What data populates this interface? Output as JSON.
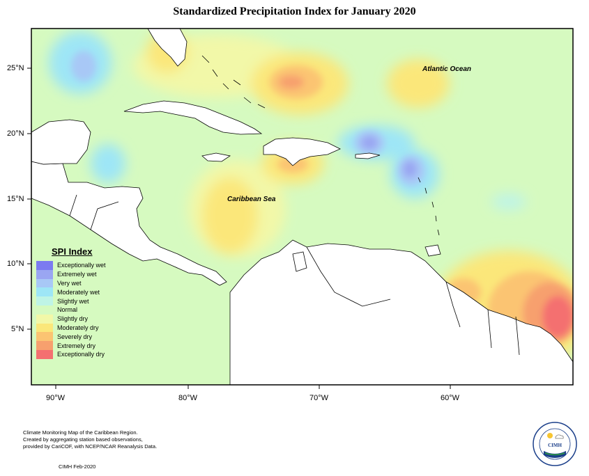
{
  "title": "Standardized Precipitation Index for January 2020",
  "y_axis_labels": [
    "25°N",
    "20°N",
    "15°N",
    "10°N",
    "5°N"
  ],
  "x_axis_labels": [
    "90°W",
    "80°W",
    "70°W",
    "60°W"
  ],
  "ocean_labels": {
    "atlantic": "Atlantic Ocean",
    "caribbean": "Caribbean Sea"
  },
  "legend": {
    "title": "SPI Index",
    "items": [
      {
        "label": "Exceptionally wet",
        "color": "#7b7bf0"
      },
      {
        "label": "Extremely wet",
        "color": "#9aa6f2"
      },
      {
        "label": "Very wet",
        "color": "#a8c8f6"
      },
      {
        "label": "Moderately wet",
        "color": "#9ee6f6"
      },
      {
        "label": "Slightly wet",
        "color": "#bff4e6"
      },
      {
        "label": "Normal",
        "color": "#d6fac0"
      },
      {
        "label": "Slightly dry",
        "color": "#f2f8a8"
      },
      {
        "label": "Moderately dry",
        "color": "#fbe77a"
      },
      {
        "label": "Severely dry",
        "color": "#fbc472"
      },
      {
        "label": "Extremely dry",
        "color": "#f7a06e"
      },
      {
        "label": "Exceptionally dry",
        "color": "#f47070"
      }
    ]
  },
  "footer": {
    "line1": "Climate Monitoring Map of the Caribbean Region.",
    "line2": "Created by aggregating station based observations,",
    "line3": "provided by CariCOF, with NCEP/NCAR Reanalysis Data.",
    "date": "CIMH Feb-2020"
  },
  "logo": {
    "text": "CIMH",
    "icon": "cimh-logo-icon"
  }
}
